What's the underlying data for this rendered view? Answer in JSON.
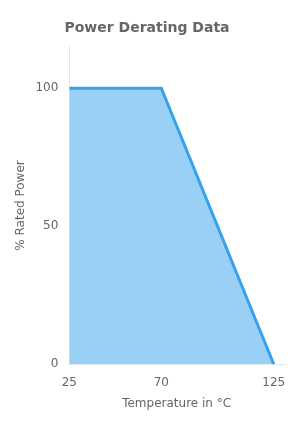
{
  "chart_data": {
    "type": "area",
    "title": "Power Derating Data",
    "x": [
      25,
      70,
      125
    ],
    "values": [
      100,
      100,
      0
    ],
    "xlabel": "Temperature in °C",
    "ylabel": "% Rated Power",
    "xlim": [
      25,
      130
    ],
    "ylim": [
      0,
      115
    ],
    "xticks": [
      25,
      70,
      125
    ],
    "yticks": [
      0,
      50,
      100
    ],
    "grid": false
  }
}
